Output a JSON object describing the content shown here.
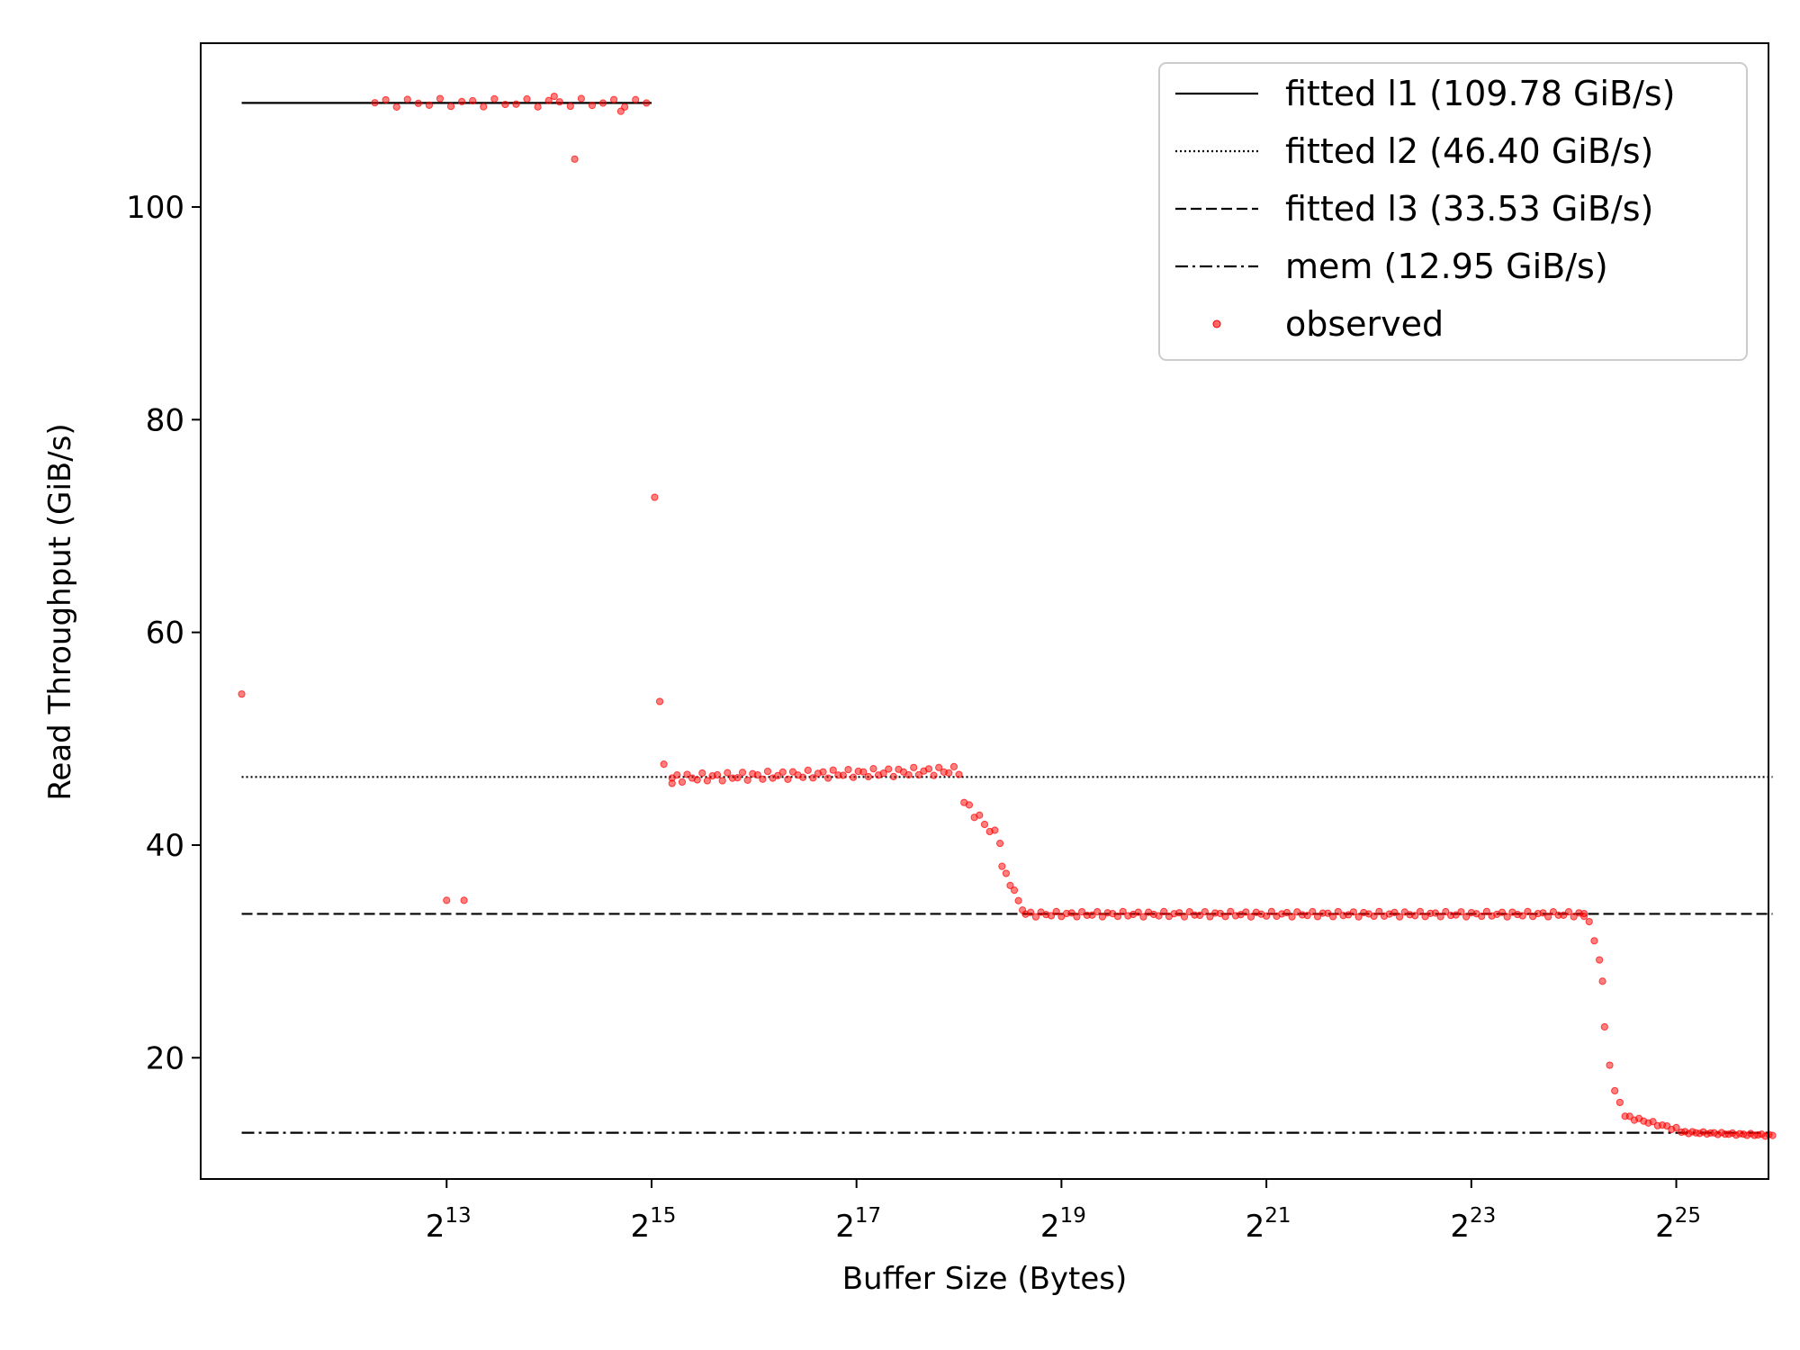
{
  "chart_data": {
    "type": "scatter",
    "title": "",
    "xlabel": "Buffer Size (Bytes)",
    "ylabel": "Read Throughput (GiB/s)",
    "x_scale": "log2",
    "xlim_exp": [
      10.6,
      25.9
    ],
    "ylim": [
      8.6,
      115.4
    ],
    "x_ticks": [
      {
        "base": "2",
        "exp": "13"
      },
      {
        "base": "2",
        "exp": "15"
      },
      {
        "base": "2",
        "exp": "17"
      },
      {
        "base": "2",
        "exp": "19"
      },
      {
        "base": "2",
        "exp": "21"
      },
      {
        "base": "2",
        "exp": "23"
      },
      {
        "base": "2",
        "exp": "25"
      }
    ],
    "y_ticks": [
      "20",
      "40",
      "60",
      "80",
      "100"
    ],
    "grid": false,
    "legend_position": "top-right",
    "fitted_lines": [
      {
        "label": "fitted l1 (109.78 GiB/s)",
        "value": 109.78,
        "style": "solid",
        "x_exp": [
          11.0,
          15.0
        ]
      },
      {
        "label": "fitted l2 (46.40 GiB/s)",
        "value": 46.4,
        "style": "dotted",
        "x_exp": [
          11.0,
          25.94
        ]
      },
      {
        "label": "fitted l3 (33.53 GiB/s)",
        "value": 33.53,
        "style": "dashed",
        "x_exp": [
          11.0,
          25.94
        ]
      },
      {
        "label": "mem (12.95 GiB/s)",
        "value": 12.95,
        "style": "dashdot",
        "x_exp": [
          11.0,
          25.94
        ]
      }
    ],
    "observed": {
      "label": "observed",
      "color": "#ff0000",
      "line_color": "#000000",
      "segments": [
        {
          "x_exp_start": 12.3,
          "x_exp_end": 14.95,
          "count": 26,
          "y_start": 109.8,
          "y_end": 109.8,
          "jitter": 0.4
        },
        {
          "x_exp_start": 15.2,
          "x_exp_end": 18.0,
          "count": 58,
          "y_start": 46.3,
          "y_end": 47.0,
          "jitter": 0.4
        },
        {
          "x_exp_start": 18.05,
          "x_exp_end": 18.4,
          "count": 8,
          "y_start": 44.0,
          "y_end": 40.5,
          "jitter": 0.4
        },
        {
          "x_exp_start": 18.42,
          "x_exp_end": 18.62,
          "count": 6,
          "y_start": 38.0,
          "y_end": 34.0,
          "jitter": 0.2
        },
        {
          "x_exp_start": 18.65,
          "x_exp_end": 24.1,
          "count": 110,
          "y_start": 33.5,
          "y_end": 33.5,
          "jitter": 0.25
        },
        {
          "x_exp_start": 24.5,
          "x_exp_end": 25.0,
          "count": 12,
          "y_start": 14.5,
          "y_end": 13.3,
          "jitter": 0.15
        },
        {
          "x_exp_start": 25.05,
          "x_exp_end": 25.94,
          "count": 26,
          "y_start": 13.0,
          "y_end": 12.7,
          "jitter": 0.1
        }
      ],
      "points": [
        {
          "x_exp": 11.0,
          "y": 54.2
        },
        {
          "x_exp": 13.0,
          "y": 34.8
        },
        {
          "x_exp": 13.17,
          "y": 34.8
        },
        {
          "x_exp": 14.25,
          "y": 104.5
        },
        {
          "x_exp": 14.05,
          "y": 110.4
        },
        {
          "x_exp": 14.7,
          "y": 109.0
        },
        {
          "x_exp": 15.03,
          "y": 72.7
        },
        {
          "x_exp": 15.08,
          "y": 53.5
        },
        {
          "x_exp": 15.12,
          "y": 47.6
        },
        {
          "x_exp": 15.2,
          "y": 45.8
        },
        {
          "x_exp": 24.1,
          "y": 33.3
        },
        {
          "x_exp": 24.15,
          "y": 32.8
        },
        {
          "x_exp": 24.2,
          "y": 31.0
        },
        {
          "x_exp": 24.25,
          "y": 29.2
        },
        {
          "x_exp": 24.28,
          "y": 27.2
        },
        {
          "x_exp": 24.3,
          "y": 22.9
        },
        {
          "x_exp": 24.35,
          "y": 19.3
        },
        {
          "x_exp": 24.4,
          "y": 16.9
        },
        {
          "x_exp": 24.45,
          "y": 15.8
        }
      ]
    }
  }
}
